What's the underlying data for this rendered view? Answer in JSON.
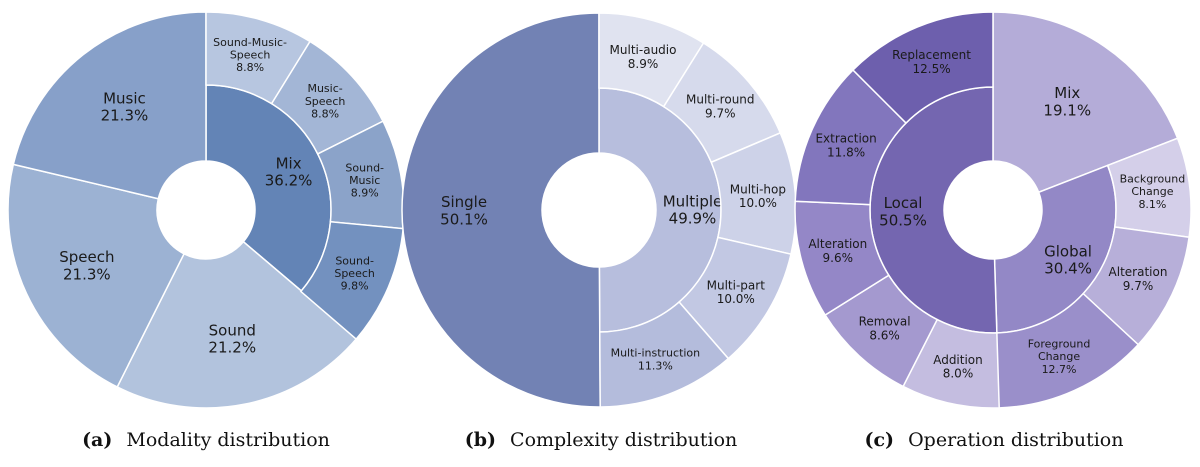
{
  "charts": [
    {
      "caption_tag": "(a)",
      "caption_text": "Modality distribution",
      "palette": {
        "inner": "#6d8bbb",
        "outer": "#8aa4c8",
        "stroke": "#ffffff",
        "text": "#1a1a1a"
      },
      "chart_data": {
        "type": "sunburst",
        "inner": [
          {
            "label": "Mix",
            "value": 36.2,
            "percent": "36.2%",
            "color": "#6384b6"
          },
          {
            "label": "Sound",
            "value": 21.2,
            "percent": "21.2%",
            "color": "#b2c3dd",
            "outer": true
          },
          {
            "label": "Speech",
            "value": 21.3,
            "percent": "21.3%",
            "color": "#9cb2d3",
            "outer": true
          },
          {
            "label": "Music",
            "value": 21.3,
            "percent": "21.3%",
            "color": "#87a0c9",
            "outer": true
          }
        ],
        "outer": [
          {
            "parent": "Mix",
            "label": "Sound-Music-Speech",
            "lines": [
              "Sound-Music-",
              "Speech"
            ],
            "value": 8.8,
            "percent": "8.8%",
            "color": "#b7c6e0"
          },
          {
            "parent": "Mix",
            "label": "Music-Speech",
            "lines": [
              "Music-",
              "Speech"
            ],
            "value": 8.8,
            "percent": "8.8%",
            "color": "#a3b6d6"
          },
          {
            "parent": "Mix",
            "label": "Sound-Music",
            "lines": [
              "Sound-",
              "Music"
            ],
            "value": 8.9,
            "percent": "8.9%",
            "color": "#8ba3c9"
          },
          {
            "parent": "Mix",
            "label": "Sound-Speech",
            "lines": [
              "Sound-",
              "Speech"
            ],
            "value": 9.8,
            "percent": "9.8%",
            "color": "#7391bf"
          }
        ]
      }
    },
    {
      "caption_tag": "(b)",
      "caption_text": "Complexity distribution",
      "palette": {
        "inner": "#7282b4",
        "outer": "#c8cee4",
        "stroke": "#ffffff",
        "text": "#1a1a1a"
      },
      "chart_data": {
        "type": "sunburst",
        "inner": [
          {
            "label": "Multiple",
            "value": 49.9,
            "percent": "49.9%",
            "color": "#b7bedd"
          },
          {
            "label": "Single",
            "value": 50.1,
            "percent": "50.1%",
            "color": "#7282b4",
            "outer": true
          }
        ],
        "outer": [
          {
            "parent": "Multiple",
            "label": "Multi-audio",
            "lines": [
              "Multi-audio"
            ],
            "value": 8.9,
            "percent": "8.9%",
            "color": "#e0e3f0"
          },
          {
            "parent": "Multiple",
            "label": "Multi-round",
            "lines": [
              "Multi-round"
            ],
            "value": 9.7,
            "percent": "9.7%",
            "color": "#d6daec"
          },
          {
            "parent": "Multiple",
            "label": "Multi-hop",
            "lines": [
              "Multi-hop"
            ],
            "value": 10.0,
            "percent": "10.0%",
            "color": "#cdd2e8"
          },
          {
            "parent": "Multiple",
            "label": "Multi-part",
            "lines": [
              "Multi-part"
            ],
            "value": 10.0,
            "percent": "10.0%",
            "color": "#c2c8e3"
          },
          {
            "parent": "Multiple",
            "label": "Multi-instruction",
            "lines": [
              "Multi-instruction"
            ],
            "value": 11.3,
            "percent": "11.3%",
            "color": "#b4bcdc"
          }
        ]
      }
    },
    {
      "caption_tag": "(c)",
      "caption_text": "Operation distribution",
      "palette": {
        "inner": "#7466b0",
        "outer": "#a79cd0",
        "stroke": "#ffffff",
        "text": "#1a1a1a"
      },
      "chart_data": {
        "type": "sunburst",
        "inner": [
          {
            "label": "Mix",
            "value": 19.1,
            "percent": "19.1%",
            "color": "#b4acd8",
            "outer": true
          },
          {
            "label": "Global",
            "value": 30.4,
            "percent": "30.4%",
            "color": "#9388c6"
          },
          {
            "label": "Local",
            "value": 50.5,
            "percent": "50.5%",
            "color": "#7466b0"
          }
        ],
        "outer": [
          {
            "parent": "Global",
            "label": "Background Change",
            "lines": [
              "Background",
              "Change"
            ],
            "value": 8.1,
            "percent": "8.1%",
            "color": "#d4cfe9"
          },
          {
            "parent": "Global",
            "label": "Alteration",
            "lines": [
              "Alteration"
            ],
            "value": 9.7,
            "percent": "9.7%",
            "color": "#b7afd9"
          },
          {
            "parent": "Global",
            "label": "Foreground Change",
            "lines": [
              "Foreground",
              "Change"
            ],
            "value": 12.7,
            "percent": "12.7%",
            "color": "#9a8fca"
          },
          {
            "parent": "Local",
            "label": "Addition",
            "lines": [
              "Addition"
            ],
            "value": 8.0,
            "percent": "8.0%",
            "color": "#c4bde0"
          },
          {
            "parent": "Local",
            "label": "Removal",
            "lines": [
              "Removal"
            ],
            "value": 8.6,
            "percent": "8.6%",
            "color": "#a499cf"
          },
          {
            "parent": "Local",
            "label": "Alteration",
            "lines": [
              "Alteration"
            ],
            "value": 9.6,
            "percent": "9.6%",
            "color": "#9487c7"
          },
          {
            "parent": "Local",
            "label": "Extraction",
            "lines": [
              "Extraction"
            ],
            "value": 11.8,
            "percent": "11.8%",
            "color": "#8276bd"
          },
          {
            "parent": "Local",
            "label": "Replacement",
            "lines": [
              "Replacement"
            ],
            "value": 12.5,
            "percent": "12.5%",
            "color": "#6d5fad"
          }
        ]
      }
    }
  ]
}
